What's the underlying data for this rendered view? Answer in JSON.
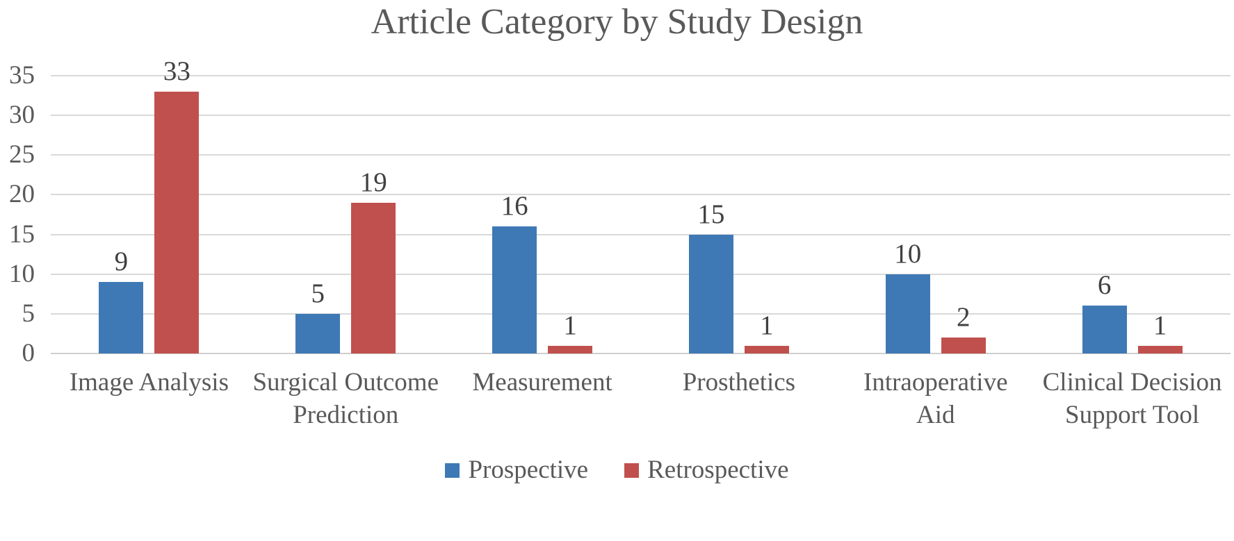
{
  "chart_data": {
    "type": "bar",
    "title": "Article Category by Study Design",
    "categories": [
      "Image Analysis",
      "Surgical Outcome Prediction",
      "Measurement",
      "Prosthetics",
      "Intraoperative Aid",
      "Clinical Decision Support Tool"
    ],
    "category_label_lines": [
      [
        "Image Analysis"
      ],
      [
        "Surgical Outcome",
        "Prediction"
      ],
      [
        "Measurement"
      ],
      [
        "Prosthetics"
      ],
      [
        "Intraoperative",
        "Aid"
      ],
      [
        "Clinical Decision",
        "Support Tool"
      ]
    ],
    "series": [
      {
        "name": "Prospective",
        "color": "#3E79B5",
        "values": [
          9,
          5,
          16,
          15,
          10,
          6
        ]
      },
      {
        "name": "Retrospective",
        "color": "#C0504D",
        "values": [
          33,
          19,
          1,
          1,
          2,
          1
        ]
      }
    ],
    "yticks": [
      0,
      5,
      10,
      15,
      20,
      25,
      30,
      35
    ],
    "ylim": [
      0,
      35
    ],
    "xlabel": "",
    "ylabel": "",
    "grid": "horizontal",
    "gridline_color": "#D9D9D9",
    "legend_position": "bottom",
    "data_labels": true,
    "text_colors": {
      "title": "#595959",
      "axis": "#595959",
      "data_label": "#404040"
    }
  }
}
